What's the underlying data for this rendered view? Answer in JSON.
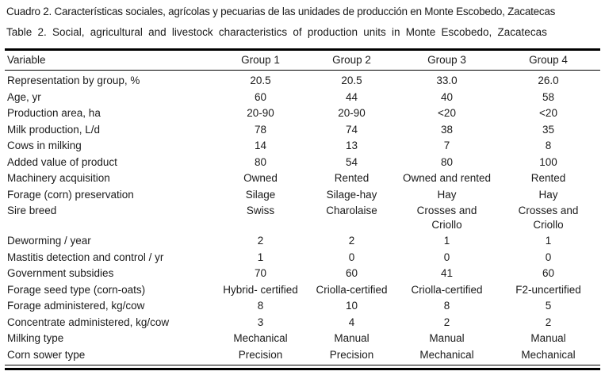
{
  "captions": {
    "spanish": "Cuadro 2.   Características sociales, agrícolas y pecuarias de las unidades de producción en Monte Escobedo, Zacatecas",
    "english": "Table 2. Social, agricultural and livestock characteristics of production units in Monte Escobedo, Zacatecas"
  },
  "chart_data": {
    "type": "table",
    "columns": [
      "Variable",
      "Group 1",
      "Group 2",
      "Group 3",
      "Group 4"
    ],
    "rows": [
      [
        "Representation by group, %",
        "20.5",
        "20.5",
        "33.0",
        "26.0"
      ],
      [
        "Age, yr",
        "60",
        "44",
        "40",
        "58"
      ],
      [
        "Production area, ha",
        "20-90",
        "20-90",
        "<20",
        "<20"
      ],
      [
        "Milk production, L/d",
        "78",
        "74",
        "38",
        "35"
      ],
      [
        "Cows in milking",
        "14",
        "13",
        "7",
        "8"
      ],
      [
        "Added value of product",
        "80",
        "54",
        "80",
        "100"
      ],
      [
        "Machinery acquisition",
        "Owned",
        "Rented",
        "Owned and rented",
        "Rented"
      ],
      [
        "Forage (corn) preservation",
        "Silage",
        "Silage-hay",
        "Hay",
        "Hay"
      ],
      [
        "Sire breed",
        "Swiss",
        "Charolaise",
        "Crosses and\nCriollo",
        "Crosses and\nCriollo"
      ],
      [
        "Deworming / year",
        "2",
        "2",
        "1",
        "1"
      ],
      [
        "Mastitis detection and control / yr",
        "1",
        "0",
        "0",
        "0"
      ],
      [
        "Government subsidies",
        "70",
        "60",
        "41",
        "60"
      ],
      [
        "Forage seed type (corn-oats)",
        "Hybrid- certified",
        "Criolla-certified",
        "Criolla-certified",
        "F2-uncertified"
      ],
      [
        "Forage administered, kg/cow",
        "8",
        "10",
        "8",
        "5"
      ],
      [
        "Concentrate administered, kg/cow",
        "3",
        "4",
        "2",
        "2"
      ],
      [
        "Milking type",
        "Mechanical",
        "Manual",
        "Manual",
        "Manual"
      ],
      [
        "Corn sower type",
        "Precision",
        "Precision",
        "Mechanical",
        "Mechanical"
      ]
    ]
  },
  "colors": {
    "text": "#1b1b1b",
    "background": "#ffffff",
    "rule": "#000000"
  }
}
